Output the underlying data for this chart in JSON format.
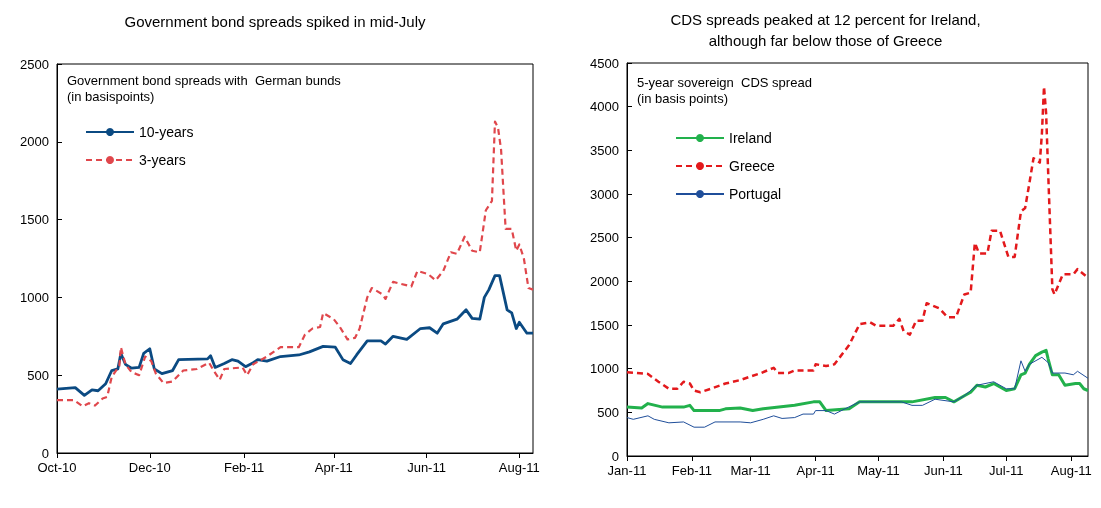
{
  "chart_data": [
    {
      "type": "line",
      "title": "Government bond spreads spiked in mid-July",
      "ylabel": "Government bond spreads with  German bunds\n(in basispoints)",
      "legend": "top left",
      "marker": "none",
      "grid": false,
      "xlim": [
        "2010-10-01",
        "2011-08-10"
      ],
      "xticks": [
        {
          "value": "2010-10-01",
          "label": "Oct-10"
        },
        {
          "value": "2010-12-01",
          "label": "Dec-10"
        },
        {
          "value": "2011-02-01",
          "label": "Feb-11"
        },
        {
          "value": "2011-04-01",
          "label": "Apr-11"
        },
        {
          "value": "2011-06-01",
          "label": "Jun-11"
        },
        {
          "value": "2011-08-01",
          "label": "Aug-11"
        }
      ],
      "ylim": [
        0,
        2500
      ],
      "yticks": [
        0,
        500,
        1000,
        1500,
        2000,
        2500
      ],
      "series": [
        {
          "name": "10-years",
          "color": "#0b4a82",
          "line_style": "solid",
          "x": [
            "2010-10-01",
            "2010-10-13",
            "2010-10-19",
            "2010-10-24",
            "2010-10-28",
            "2010-11-02",
            "2010-11-06",
            "2010-11-10",
            "2010-11-12",
            "2010-11-15",
            "2010-11-19",
            "2010-11-24",
            "2010-11-27",
            "2010-12-01",
            "2010-12-04",
            "2010-12-09",
            "2010-12-16",
            "2010-12-20",
            "2011-01-08",
            "2011-01-10",
            "2011-01-13",
            "2011-01-19",
            "2011-01-24",
            "2011-01-28",
            "2011-02-02",
            "2011-02-07",
            "2011-02-10",
            "2011-02-16",
            "2011-02-25",
            "2011-03-09",
            "2011-03-16",
            "2011-03-25",
            "2011-04-02",
            "2011-04-07",
            "2011-04-12",
            "2011-04-16",
            "2011-04-23",
            "2011-05-02",
            "2011-05-05",
            "2011-05-10",
            "2011-05-19",
            "2011-05-28",
            "2011-06-03",
            "2011-06-08",
            "2011-06-12",
            "2011-06-21",
            "2011-06-27",
            "2011-07-01",
            "2011-07-06",
            "2011-07-09",
            "2011-07-12",
            "2011-07-16",
            "2011-07-19",
            "2011-07-24",
            "2011-07-27",
            "2011-07-30",
            "2011-08-01",
            "2011-08-06",
            "2011-08-10"
          ],
          "values": [
            410,
            420,
            370,
            405,
            400,
            445,
            530,
            540,
            640,
            570,
            545,
            550,
            640,
            670,
            540,
            510,
            530,
            600,
            605,
            625,
            550,
            575,
            600,
            590,
            555,
            580,
            600,
            590,
            620,
            630,
            650,
            685,
            680,
            600,
            575,
            630,
            720,
            720,
            700,
            750,
            730,
            800,
            805,
            770,
            830,
            860,
            920,
            865,
            860,
            1000,
            1050,
            1140,
            1140,
            920,
            900,
            800,
            840,
            770,
            770
          ]
        },
        {
          "name": "3-years",
          "color": "#e0474c",
          "line_style": "dashed",
          "x": [
            "2010-10-01",
            "2010-10-12",
            "2010-10-18",
            "2010-10-22",
            "2010-10-26",
            "2010-10-31",
            "2010-11-03",
            "2010-11-06",
            "2010-11-11",
            "2010-11-12",
            "2010-11-15",
            "2010-11-19",
            "2010-11-24",
            "2010-11-28",
            "2010-12-02",
            "2010-12-05",
            "2010-12-10",
            "2010-12-16",
            "2010-12-23",
            "2011-01-01",
            "2011-01-09",
            "2011-01-12",
            "2011-01-16",
            "2011-01-19",
            "2011-01-31",
            "2011-02-03",
            "2011-02-07",
            "2011-02-16",
            "2011-02-25",
            "2011-03-09",
            "2011-03-13",
            "2011-03-18",
            "2011-03-23",
            "2011-03-25",
            "2011-04-01",
            "2011-04-05",
            "2011-04-10",
            "2011-04-15",
            "2011-04-18",
            "2011-04-23",
            "2011-04-26",
            "2011-05-03",
            "2011-05-05",
            "2011-05-10",
            "2011-05-22",
            "2011-05-26",
            "2011-06-02",
            "2011-06-07",
            "2011-06-12",
            "2011-06-17",
            "2011-06-21",
            "2011-06-26",
            "2011-07-01",
            "2011-07-06",
            "2011-07-10",
            "2011-07-14",
            "2011-07-16",
            "2011-07-18",
            "2011-07-20",
            "2011-07-23",
            "2011-07-27",
            "2011-07-30",
            "2011-08-01",
            "2011-08-04",
            "2011-08-07",
            "2011-08-10"
          ],
          "values": [
            340,
            340,
            300,
            320,
            305,
            350,
            360,
            490,
            560,
            680,
            570,
            520,
            500,
            620,
            590,
            510,
            450,
            460,
            530,
            540,
            580,
            530,
            470,
            540,
            550,
            500,
            570,
            620,
            680,
            680,
            760,
            800,
            810,
            900,
            860,
            810,
            730,
            740,
            800,
            1000,
            1060,
            1020,
            990,
            1100,
            1070,
            1170,
            1150,
            1110,
            1170,
            1290,
            1280,
            1390,
            1300,
            1290,
            1560,
            1620,
            2130,
            2090,
            1950,
            1440,
            1440,
            1300,
            1340,
            1250,
            1060,
            1050
          ]
        }
      ]
    },
    {
      "type": "line",
      "title": "CDS spreads peaked at 12 percent for Ireland,\nalthough far below those of Greece",
      "ylabel": "5-year sovereign  CDS spread\n(in basis points)",
      "legend": "top left",
      "marker": "none",
      "grid": false,
      "xlim": [
        "2011-01-01",
        "2011-08-09"
      ],
      "xticks": [
        {
          "value": "2011-01-01",
          "label": "Jan-11"
        },
        {
          "value": "2011-02-01",
          "label": "Feb-11"
        },
        {
          "value": "2011-03-01",
          "label": "Mar-11"
        },
        {
          "value": "2011-04-01",
          "label": "Apr-11"
        },
        {
          "value": "2011-05-01",
          "label": "May-11"
        },
        {
          "value": "2011-06-01",
          "label": "Jun-11"
        },
        {
          "value": "2011-07-01",
          "label": "Jul-11"
        },
        {
          "value": "2011-08-01",
          "label": "Aug-11"
        }
      ],
      "ylim": [
        0,
        4500
      ],
      "yticks": [
        0,
        500,
        1000,
        1500,
        2000,
        2500,
        3000,
        3500,
        4000,
        4500
      ],
      "series": [
        {
          "name": "Ireland",
          "color": "#22b14c",
          "line_style": "solid",
          "x": [
            "2011-01-01",
            "2011-01-08",
            "2011-01-11",
            "2011-01-18",
            "2011-01-28",
            "2011-01-31",
            "2011-02-02",
            "2011-02-14",
            "2011-02-17",
            "2011-02-24",
            "2011-03-02",
            "2011-03-07",
            "2011-03-22",
            "2011-03-31",
            "2011-04-03",
            "2011-04-06",
            "2011-04-17",
            "2011-04-22",
            "2011-04-28",
            "2011-05-12",
            "2011-05-17",
            "2011-05-28",
            "2011-06-02",
            "2011-06-06",
            "2011-06-11",
            "2011-06-14",
            "2011-06-17",
            "2011-06-21",
            "2011-06-25",
            "2011-07-01",
            "2011-07-05",
            "2011-07-08",
            "2011-07-10",
            "2011-07-12",
            "2011-07-15",
            "2011-07-18",
            "2011-07-20",
            "2011-07-21",
            "2011-07-23",
            "2011-07-26",
            "2011-07-29",
            "2011-08-03",
            "2011-08-05",
            "2011-08-07",
            "2011-08-09"
          ],
          "values": [
            560,
            550,
            600,
            560,
            560,
            580,
            520,
            520,
            540,
            550,
            520,
            540,
            580,
            620,
            620,
            520,
            540,
            620,
            620,
            620,
            620,
            670,
            670,
            620,
            690,
            730,
            810,
            790,
            830,
            750,
            770,
            930,
            950,
            1050,
            1150,
            1190,
            1210,
            1110,
            930,
            930,
            810,
            830,
            830,
            770,
            750
          ]
        },
        {
          "name": "Greece",
          "color": "#e3191c",
          "line_style": "dashed",
          "x": [
            "2011-01-01",
            "2011-01-11",
            "2011-01-16",
            "2011-01-21",
            "2011-01-25",
            "2011-01-28",
            "2011-01-31",
            "2011-02-02",
            "2011-02-05",
            "2011-02-10",
            "2011-02-17",
            "2011-02-24",
            "2011-03-01",
            "2011-03-06",
            "2011-03-12",
            "2011-03-14",
            "2011-03-19",
            "2011-03-22",
            "2011-03-31",
            "2011-04-01",
            "2011-04-06",
            "2011-04-10",
            "2011-04-17",
            "2011-04-22",
            "2011-04-27",
            "2011-04-30",
            "2011-05-08",
            "2011-05-11",
            "2011-05-13",
            "2011-05-16",
            "2011-05-19",
            "2011-05-22",
            "2011-05-24",
            "2011-05-30",
            "2011-06-03",
            "2011-06-07",
            "2011-06-11",
            "2011-06-14",
            "2011-06-16",
            "2011-06-18",
            "2011-06-22",
            "2011-06-24",
            "2011-06-28",
            "2011-07-02",
            "2011-07-05",
            "2011-07-08",
            "2011-07-10",
            "2011-07-12",
            "2011-07-14",
            "2011-07-17",
            "2011-07-18",
            "2011-07-19",
            "2011-07-20",
            "2011-07-21",
            "2011-07-23",
            "2011-07-24",
            "2011-07-28",
            "2011-08-02",
            "2011-08-04",
            "2011-08-09"
          ],
          "values": [
            960,
            940,
            850,
            770,
            770,
            850,
            830,
            750,
            730,
            770,
            830,
            870,
            910,
            950,
            1010,
            950,
            950,
            980,
            980,
            1050,
            1030,
            1050,
            1270,
            1510,
            1530,
            1490,
            1490,
            1570,
            1430,
            1390,
            1550,
            1550,
            1750,
            1690,
            1590,
            1590,
            1850,
            1870,
            2440,
            2320,
            2320,
            2580,
            2580,
            2280,
            2280,
            2800,
            2840,
            3120,
            3410,
            3360,
            3690,
            4230,
            3930,
            3240,
            1910,
            1850,
            2080,
            2080,
            2140,
            2040
          ]
        },
        {
          "name": "Portugal",
          "color": "#1f4e9a",
          "line_style": "solid",
          "x": [
            "2011-01-01",
            "2011-01-04",
            "2011-01-11",
            "2011-01-14",
            "2011-01-21",
            "2011-01-28",
            "2011-02-02",
            "2011-02-07",
            "2011-02-12",
            "2011-02-24",
            "2011-03-01",
            "2011-03-07",
            "2011-03-12",
            "2011-03-16",
            "2011-03-22",
            "2011-03-26",
            "2011-03-31",
            "2011-04-01",
            "2011-04-06",
            "2011-04-10",
            "2011-04-15",
            "2011-04-22",
            "2011-05-12",
            "2011-05-17",
            "2011-05-22",
            "2011-05-28",
            "2011-06-06",
            "2011-06-11",
            "2011-06-17",
            "2011-06-25",
            "2011-07-01",
            "2011-07-05",
            "2011-07-08",
            "2011-07-10",
            "2011-07-12",
            "2011-07-18",
            "2011-07-21",
            "2011-07-23",
            "2011-07-29",
            "2011-08-02",
            "2011-08-04",
            "2011-08-09"
          ],
          "values": [
            440,
            420,
            460,
            420,
            380,
            390,
            330,
            330,
            390,
            390,
            380,
            420,
            460,
            430,
            440,
            480,
            480,
            520,
            520,
            480,
            540,
            620,
            620,
            580,
            580,
            650,
            620,
            690,
            810,
            850,
            770,
            770,
            1090,
            970,
            1050,
            1130,
            1070,
            950,
            950,
            930,
            970,
            890
          ]
        }
      ]
    }
  ]
}
